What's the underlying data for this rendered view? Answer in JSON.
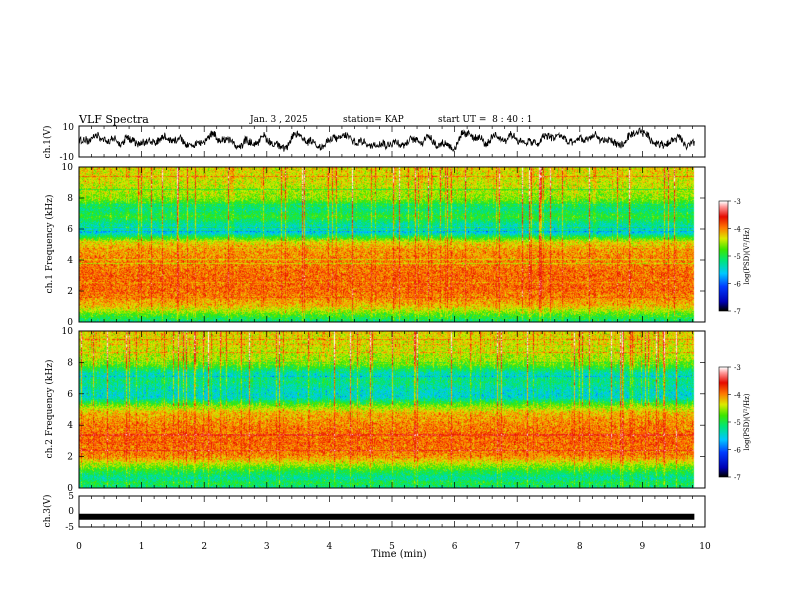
{
  "header": {
    "title": "VLF Spectra",
    "date": "Jan. 3 , 2025",
    "station": "station= KAP",
    "start_ut": "start UT =  8 : 40 : 1"
  },
  "chart_data": {
    "type": "heatmap",
    "title": "VLF Spectra",
    "xlabel": "Time (min)",
    "x_ticks": [
      "0",
      "1",
      "2",
      "3",
      "4",
      "5",
      "6",
      "7",
      "8",
      "9",
      "10"
    ],
    "xlim": [
      0,
      10
    ],
    "panels": [
      {
        "name": "ch1-waveform",
        "type": "line",
        "ylabel": "ch.1(V)",
        "ylim": [
          -10,
          10
        ],
        "y_ticks": [
          "10",
          "-10"
        ],
        "t_end": 9.83,
        "mean_level": 0.8,
        "amplitude": 4
      },
      {
        "name": "ch1-spectrogram",
        "type": "heatmap",
        "ylabel": "ch.1 Frequency (kHz)",
        "ylim": [
          0,
          10
        ],
        "y_ticks": [
          "0",
          "2",
          "4",
          "6",
          "8",
          "10"
        ],
        "t_end": 9.83,
        "freq_profile_khz": [
          0,
          0.3,
          0.6,
          1.0,
          1.6,
          2.0,
          3.0,
          4.0,
          4.8,
          5.2,
          5.8,
          6.3,
          6.8,
          7.3,
          8.0,
          9.0,
          10.0
        ],
        "log_psd_profile": [
          -5.2,
          -4.9,
          -4.6,
          -4.2,
          -4.0,
          -3.9,
          -3.9,
          -4.0,
          -4.1,
          -4.4,
          -5.6,
          -5.3,
          -4.9,
          -5.2,
          -4.6,
          -4.4,
          -4.3
        ],
        "colorbar": {
          "label": "log(PSD)(V²/Hz)",
          "range": [
            -7,
            -3
          ],
          "ticks": [
            "-3",
            "-4",
            "-5",
            "-6",
            "-7"
          ]
        }
      },
      {
        "name": "ch2-spectrogram",
        "type": "heatmap",
        "ylabel": "ch.2 Frequency (kHz)",
        "ylim": [
          0,
          10
        ],
        "y_ticks": [
          "0",
          "2",
          "4",
          "6",
          "8",
          "10"
        ],
        "t_end": 9.83,
        "freq_profile_khz": [
          0,
          0.3,
          0.6,
          1.0,
          1.6,
          2.0,
          3.0,
          4.0,
          4.8,
          5.2,
          5.8,
          6.3,
          6.8,
          7.3,
          8.0,
          9.0,
          10.0
        ],
        "log_psd_profile": [
          -5.2,
          -5.0,
          -5.3,
          -5.0,
          -4.4,
          -4.0,
          -3.9,
          -4.0,
          -4.2,
          -4.6,
          -5.5,
          -5.4,
          -5.2,
          -5.4,
          -4.6,
          -4.4,
          -4.3
        ],
        "colorbar": {
          "label": "log(PSD)(V²/Hz)",
          "range": [
            -7,
            -3
          ],
          "ticks": [
            "-3",
            "-4",
            "-5",
            "-6",
            "-7"
          ]
        }
      },
      {
        "name": "ch3-waveform",
        "type": "line",
        "ylabel": "ch.3(V)",
        "ylim": [
          -5,
          5
        ],
        "y_ticks": [
          "5",
          "0",
          "-5"
        ],
        "t_end": 9.83,
        "level": -1.7
      }
    ]
  }
}
